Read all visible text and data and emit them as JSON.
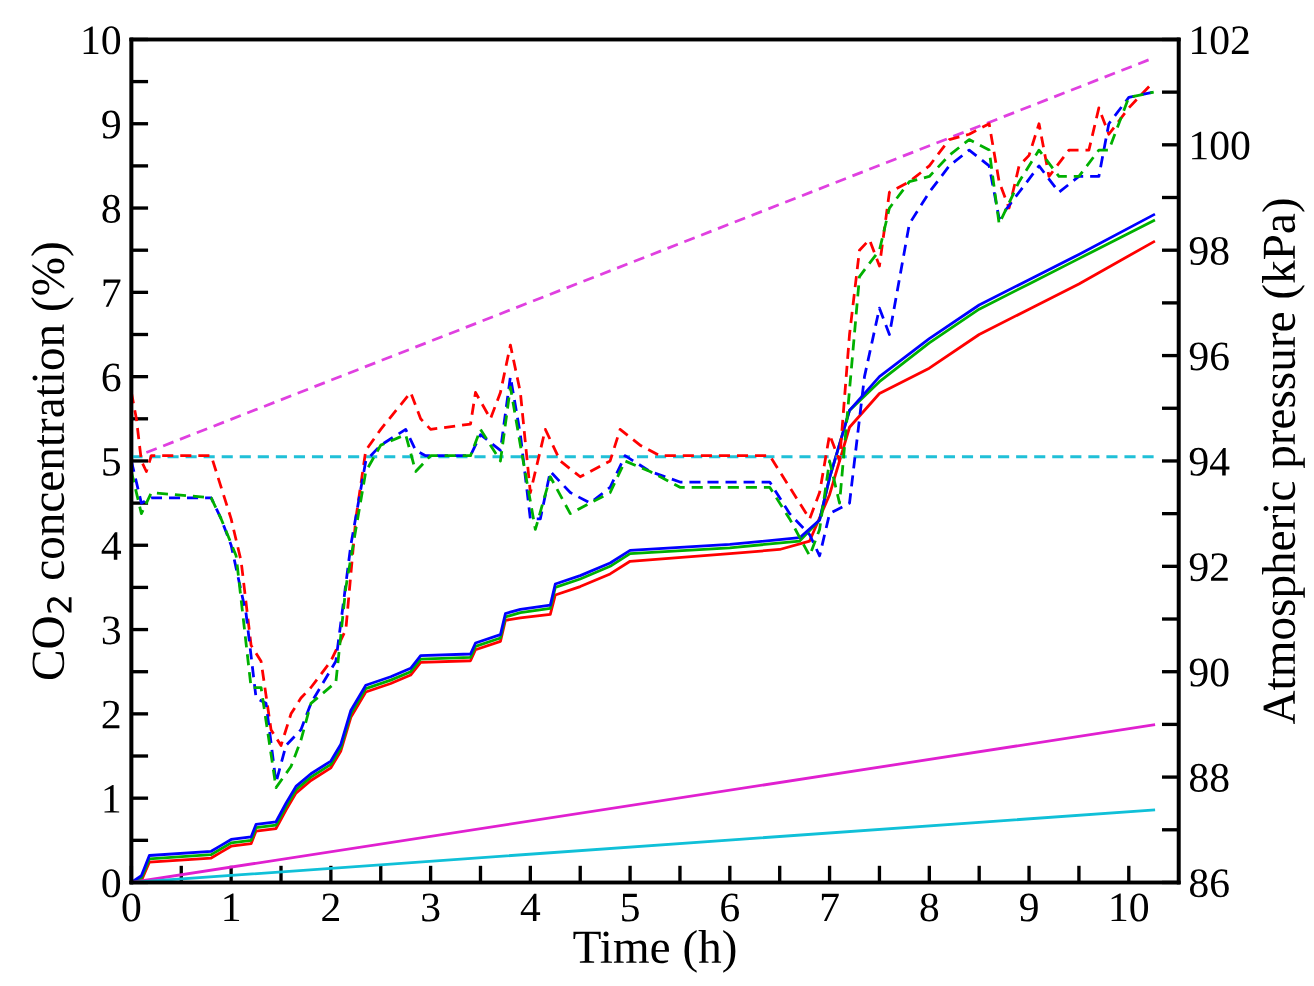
{
  "chart_data": {
    "type": "line",
    "xlabel": "Time (h)",
    "ylabel": "CO$_{2}$ concentration (%)",
    "y2label": "Atmospheric pressure (kPa)",
    "xlim": [
      0,
      10.5
    ],
    "ylim": [
      0,
      10
    ],
    "y2lim": [
      86,
      102
    ],
    "xticks": [
      0,
      {
        "value": 0.5,
        "label": null
      },
      1,
      {
        "value": 1.5,
        "label": null
      },
      2,
      {
        "value": 2.5,
        "label": null
      },
      3,
      {
        "value": 3.5,
        "label": null
      },
      4,
      {
        "value": 4.5,
        "label": null
      },
      5,
      {
        "value": 5.5,
        "label": null
      },
      6,
      {
        "value": 6.5,
        "label": null
      },
      7,
      {
        "value": 7.5,
        "label": null
      },
      8,
      {
        "value": 8.5,
        "label": null
      },
      9,
      {
        "value": 9.5,
        "label": null
      },
      10
    ],
    "yticks": [
      0,
      {
        "value": 0.5,
        "label": null
      },
      1,
      {
        "value": 1.5,
        "label": null
      },
      2,
      {
        "value": 2.5,
        "label": null
      },
      3,
      {
        "value": 3.5,
        "label": null
      },
      4,
      {
        "value": 4.5,
        "label": null
      },
      5,
      {
        "value": 5.5,
        "label": null
      },
      6,
      {
        "value": 6.5,
        "label": null
      },
      7,
      {
        "value": 7.5,
        "label": null
      },
      8,
      {
        "value": 8.5,
        "label": null
      },
      9,
      {
        "value": 9.5,
        "label": null
      },
      10
    ],
    "y2ticks": [
      86,
      {
        "value": 87,
        "label": null
      },
      88,
      {
        "value": 89,
        "label": null
      },
      90,
      {
        "value": 91,
        "label": null
      },
      92,
      {
        "value": 93,
        "label": null
      },
      94,
      {
        "value": 95,
        "label": null
      },
      96,
      {
        "value": 97,
        "label": null
      },
      98,
      {
        "value": 99,
        "label": null
      },
      100,
      {
        "value": 101,
        "label": null
      },
      102
    ],
    "grid": false,
    "legend": false,
    "marker": "none",
    "series": [
      {
        "color": "#ff0000",
        "line_style": "solid",
        "x": [
          0,
          0.1,
          0.18,
          0.8,
          0.9,
          1.0,
          1.2,
          1.25,
          1.45,
          1.55,
          1.65,
          1.8,
          2.0,
          2.1,
          2.2,
          2.35,
          2.6,
          2.8,
          2.9,
          3.4,
          3.45,
          3.7,
          3.75,
          3.9,
          4.2,
          4.25,
          4.5,
          4.8,
          5.0,
          6.0,
          6.5,
          6.8,
          7.0,
          7.2,
          7.5,
          8.0,
          8.5,
          9.0,
          9.5,
          10.25
        ],
        "values": [
          0,
          0.02,
          0.24,
          0.29,
          0.36,
          0.43,
          0.46,
          0.61,
          0.64,
          0.86,
          1.06,
          1.21,
          1.36,
          1.56,
          1.96,
          2.26,
          2.36,
          2.46,
          2.61,
          2.63,
          2.76,
          2.86,
          3.11,
          3.14,
          3.18,
          3.41,
          3.51,
          3.66,
          3.81,
          3.9,
          3.95,
          4.05,
          4.6,
          5.4,
          5.8,
          6.1,
          6.5,
          6.8,
          7.1,
          7.6
        ]
      },
      {
        "color": "#00b000",
        "line_style": "solid",
        "x": [
          0,
          0.1,
          0.18,
          0.8,
          0.9,
          1.0,
          1.2,
          1.25,
          1.45,
          1.55,
          1.65,
          1.8,
          2.0,
          2.1,
          2.2,
          2.35,
          2.6,
          2.8,
          2.9,
          3.4,
          3.45,
          3.7,
          3.75,
          3.9,
          4.2,
          4.25,
          4.5,
          4.8,
          5.0,
          6.0,
          6.7,
          6.9,
          7.0,
          7.2,
          7.5,
          8.0,
          8.5,
          9.0,
          9.5,
          10.25
        ],
        "values": [
          0,
          0.05,
          0.28,
          0.33,
          0.4,
          0.47,
          0.5,
          0.65,
          0.68,
          0.9,
          1.1,
          1.25,
          1.4,
          1.6,
          2.0,
          2.3,
          2.4,
          2.5,
          2.65,
          2.67,
          2.8,
          2.9,
          3.15,
          3.2,
          3.25,
          3.5,
          3.6,
          3.75,
          3.9,
          3.97,
          4.05,
          4.3,
          4.8,
          5.6,
          5.94,
          6.4,
          6.8,
          7.1,
          7.4,
          7.85
        ]
      },
      {
        "color": "#0000ff",
        "line_style": "solid",
        "x": [
          0,
          0.1,
          0.18,
          0.8,
          0.9,
          1.0,
          1.2,
          1.25,
          1.45,
          1.55,
          1.65,
          1.8,
          2.0,
          2.1,
          2.2,
          2.35,
          2.6,
          2.8,
          2.9,
          3.4,
          3.45,
          3.7,
          3.75,
          3.9,
          4.2,
          4.25,
          4.5,
          4.8,
          5.0,
          6.0,
          6.7,
          6.9,
          7.0,
          7.2,
          7.5,
          8.0,
          8.5,
          9.0,
          9.5,
          10.25
        ],
        "values": [
          0,
          0.08,
          0.32,
          0.37,
          0.44,
          0.51,
          0.54,
          0.69,
          0.72,
          0.94,
          1.14,
          1.29,
          1.44,
          1.64,
          2.04,
          2.34,
          2.44,
          2.54,
          2.69,
          2.71,
          2.84,
          2.94,
          3.19,
          3.24,
          3.29,
          3.54,
          3.64,
          3.79,
          3.94,
          4.01,
          4.09,
          4.3,
          4.8,
          5.6,
          6.0,
          6.45,
          6.85,
          7.15,
          7.45,
          7.92
        ]
      },
      {
        "color": "#e020d0",
        "line_style": "solid",
        "x": [
          0,
          10.25
        ],
        "values": [
          0,
          1.87
        ]
      },
      {
        "color": "#10c0d8",
        "line_style": "solid",
        "x": [
          0,
          10.25
        ],
        "values": [
          0,
          0.86
        ]
      },
      {
        "color": "#e040e0",
        "line_style": "dashed",
        "axis": "y2",
        "x": [
          0.15,
          10.25
        ],
        "values": [
          94.16,
          101.65
        ]
      },
      {
        "color": "#20c0d8",
        "line_style": "dashed",
        "axis": "y2",
        "x": [
          0,
          10.25
        ],
        "values": [
          94.08,
          94.08
        ]
      },
      {
        "color": "#ff0000",
        "line_style": "dashed",
        "axis": "y2",
        "x": [
          0,
          0.05,
          0.1,
          0.15,
          0.2,
          0.8,
          0.9,
          1.0,
          1.1,
          1.2,
          1.3,
          1.4,
          1.5,
          1.6,
          1.7,
          1.8,
          2.0,
          2.15,
          2.25,
          2.35,
          2.5,
          2.8,
          2.9,
          3.0,
          3.4,
          3.45,
          3.6,
          3.7,
          3.8,
          3.9,
          4.0,
          4.15,
          4.3,
          4.5,
          4.8,
          4.9,
          5.1,
          5.3,
          6.4,
          6.6,
          6.8,
          6.9,
          7.0,
          7.1,
          7.2,
          7.3,
          7.4,
          7.5,
          7.6,
          7.8,
          8.0,
          8.2,
          8.4,
          8.6,
          8.7,
          8.8,
          8.9,
          9.0,
          9.1,
          9.2,
          9.4,
          9.6,
          9.7,
          9.8,
          10.0,
          10.25
        ],
        "values": [
          95.3,
          94.8,
          94.0,
          93.8,
          94.1,
          94.1,
          93.5,
          92.9,
          92.1,
          90.5,
          90.2,
          88.9,
          88.6,
          89.2,
          89.5,
          89.7,
          90.2,
          90.8,
          92.9,
          94.2,
          94.6,
          95.3,
          94.8,
          94.6,
          94.7,
          95.3,
          94.8,
          95.3,
          96.2,
          95.3,
          93.4,
          94.6,
          94.0,
          93.7,
          94.0,
          94.6,
          94.3,
          94.1,
          94.1,
          93.5,
          92.9,
          93.4,
          94.5,
          94.0,
          96.4,
          98.0,
          98.2,
          97.7,
          99.1,
          99.3,
          99.6,
          100.1,
          100.2,
          100.4,
          99.3,
          98.8,
          99.6,
          99.8,
          100.4,
          99.4,
          99.9,
          99.9,
          100.7,
          100.2,
          100.7,
          101.2
        ]
      },
      {
        "color": "#0000ff",
        "line_style": "dashed",
        "axis": "y2",
        "x": [
          0,
          0.1,
          0.2,
          0.8,
          0.9,
          1.0,
          1.15,
          1.25,
          1.35,
          1.45,
          1.55,
          1.7,
          1.8,
          2.05,
          2.2,
          2.35,
          2.5,
          2.75,
          2.85,
          2.95,
          3.4,
          3.5,
          3.7,
          3.8,
          3.9,
          4.0,
          4.1,
          4.2,
          4.4,
          4.6,
          4.8,
          4.95,
          5.2,
          5.5,
          6.4,
          6.6,
          6.8,
          6.9,
          7.0,
          7.2,
          7.35,
          7.5,
          7.6,
          7.8,
          8.0,
          8.2,
          8.4,
          8.6,
          8.7,
          8.9,
          9.1,
          9.3,
          9.5,
          9.7,
          9.8,
          10.0,
          10.25
        ],
        "values": [
          94.0,
          93.2,
          93.3,
          93.3,
          92.9,
          92.4,
          91.1,
          89.5,
          89.4,
          87.9,
          88.6,
          88.9,
          89.4,
          90.2,
          92.4,
          94.0,
          94.3,
          94.6,
          94.2,
          94.1,
          94.1,
          94.5,
          94.2,
          95.6,
          94.5,
          92.9,
          92.9,
          93.8,
          93.4,
          93.2,
          93.5,
          94.1,
          93.8,
          93.6,
          93.6,
          93.0,
          92.6,
          92.2,
          93.0,
          93.2,
          95.6,
          96.9,
          96.4,
          98.5,
          99.1,
          99.6,
          99.9,
          99.6,
          98.6,
          99.1,
          99.6,
          99.1,
          99.4,
          99.4,
          100.4,
          100.9,
          101.0
        ]
      },
      {
        "color": "#00b000",
        "line_style": "dashed",
        "axis": "y2",
        "x": [
          0,
          0.1,
          0.2,
          0.8,
          0.9,
          1.05,
          1.2,
          1.3,
          1.45,
          1.6,
          1.7,
          1.8,
          2.05,
          2.15,
          2.35,
          2.5,
          2.75,
          2.85,
          3.0,
          3.4,
          3.5,
          3.7,
          3.8,
          3.9,
          4.05,
          4.2,
          4.4,
          4.6,
          4.8,
          4.95,
          5.2,
          5.5,
          6.4,
          6.6,
          6.8,
          6.9,
          7.0,
          7.1,
          7.3,
          7.5,
          7.6,
          7.8,
          8.0,
          8.2,
          8.4,
          8.6,
          8.7,
          8.9,
          9.1,
          9.3,
          9.5,
          9.7,
          9.8,
          10.0,
          10.25
        ],
        "values": [
          93.8,
          93.0,
          93.4,
          93.3,
          92.9,
          92.2,
          89.7,
          89.7,
          87.8,
          88.2,
          88.7,
          89.4,
          89.8,
          91.6,
          93.8,
          94.3,
          94.5,
          93.8,
          94.1,
          94.1,
          94.6,
          94.0,
          95.4,
          94.3,
          92.7,
          93.7,
          93.0,
          93.2,
          93.4,
          94.0,
          93.8,
          93.5,
          93.5,
          92.9,
          92.2,
          92.7,
          94.0,
          93.2,
          97.5,
          98.0,
          98.8,
          99.3,
          99.4,
          99.8,
          100.1,
          99.9,
          98.5,
          99.3,
          99.9,
          99.4,
          99.4,
          99.9,
          99.9,
          100.9,
          101.0
        ]
      }
    ]
  }
}
